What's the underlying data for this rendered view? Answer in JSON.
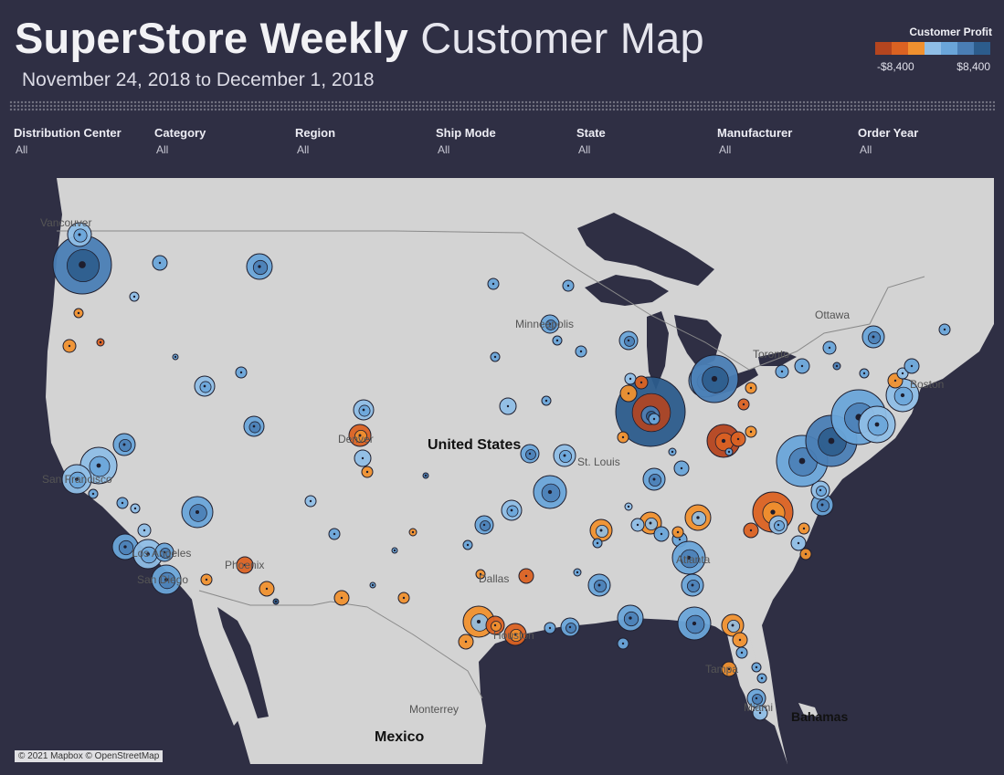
{
  "header": {
    "title_bold": "SuperStore Weekly",
    "title_light": "Customer Map",
    "date_start": "November 24, 2018",
    "date_sep": "to",
    "date_end": "December 1, 2018"
  },
  "legend": {
    "title": "Customer Profit",
    "min_label": "-$8,400",
    "max_label": "$8,400",
    "colors": [
      "#b5451f",
      "#db6222",
      "#f0912f",
      "#8fbee6",
      "#6aa5d9",
      "#4a7eb5",
      "#2c5c8c"
    ]
  },
  "filters": [
    {
      "label": "Distribution Center",
      "value": "All"
    },
    {
      "label": "Category",
      "value": "All"
    },
    {
      "label": "Region",
      "value": "All"
    },
    {
      "label": "Ship Mode",
      "value": "All"
    },
    {
      "label": "State",
      "value": "All"
    },
    {
      "label": "Manufacturer",
      "value": "All"
    },
    {
      "label": "Order Year",
      "value": "All"
    }
  ],
  "map": {
    "attribution": "© 2021 Mapbox © OpenStreetMap",
    "land_color": "#d3d3d3",
    "water_color": "#2f2f44",
    "place_labels": {
      "vancouver": "Vancouver",
      "ottawa": "Ottawa",
      "toronto": "Toronto",
      "minneapolis": "Minneapolis",
      "denver": "Denver",
      "st_louis": "St. Louis",
      "san_francisco": "San Francisco",
      "los_angeles": "Los Angeles",
      "san_diego": "San Diego",
      "phoenix": "Phoenix",
      "dallas": "Dallas",
      "houston": "Houston",
      "atlanta": "Atlanta",
      "tampa": "Tampa",
      "miami": "Miami",
      "monterrey": "Monterrey",
      "boston": "Boston"
    },
    "country_labels": {
      "usa": "United States",
      "mexico": "Mexico",
      "bahamas": "Bahamas"
    }
  }
}
